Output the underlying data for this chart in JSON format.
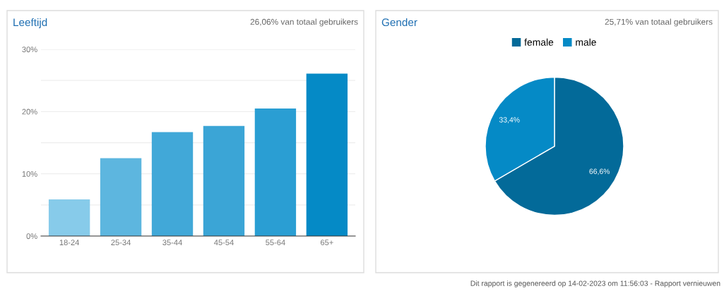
{
  "chart_data": [
    {
      "type": "bar",
      "title": "Leeftijd",
      "subtitle": "26,06% van totaal gebruikers",
      "categories": [
        "18-24",
        "25-34",
        "35-44",
        "45-54",
        "55-64",
        "65+"
      ],
      "values": [
        5.9,
        12.5,
        16.7,
        17.7,
        20.5,
        26.1
      ],
      "colors": [
        "#87cbea",
        "#5db6df",
        "#41a8d8",
        "#3ba5d6",
        "#2a9ed3",
        "#058ac6"
      ],
      "ylim": [
        0,
        30
      ],
      "yticks": [
        {
          "value": 0,
          "label": "0%"
        },
        {
          "value": 5,
          "label": null
        },
        {
          "value": 10,
          "label": "10%"
        },
        {
          "value": 15,
          "label": null
        },
        {
          "value": 20,
          "label": "20%"
        },
        {
          "value": 25,
          "label": null
        },
        {
          "value": 30,
          "label": "30%"
        }
      ],
      "grid": "y",
      "legend": false
    },
    {
      "type": "pie",
      "title": "Gender",
      "subtitle": "25,71% van totaal gebruikers",
      "categories": [
        "female",
        "male"
      ],
      "values": [
        66.6,
        33.4
      ],
      "colors": [
        "#036a99",
        "#058ac6"
      ],
      "value_labels": [
        "66,6%",
        "33,4%"
      ],
      "legend": "top",
      "annotations": [
        "Dit rapport is gegenereerd op 14-02-2023 om 11:56:03 - Rapport vernieuwen"
      ]
    }
  ]
}
